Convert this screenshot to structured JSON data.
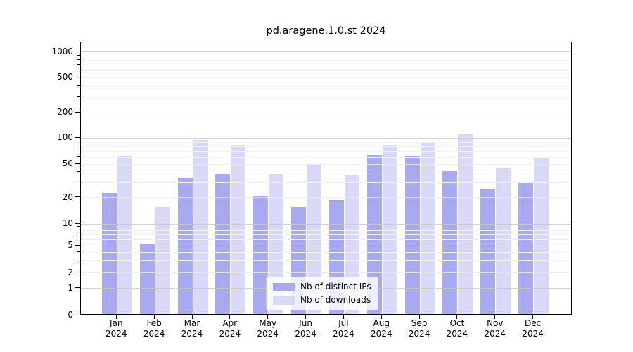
{
  "title": "pd.aragene.1.0.st 2024",
  "chart_data": {
    "type": "bar",
    "title": "pd.aragene.1.0.st 2024",
    "categories": [
      "Jan 2024",
      "Feb 2024",
      "Mar 2024",
      "Apr 2024",
      "May 2024",
      "Jun 2024",
      "Jul 2024",
      "Aug 2024",
      "Sep 2024",
      "Oct 2024",
      "Nov 2024",
      "Dec 2024"
    ],
    "x_tick_month_labels": [
      "Jan",
      "Feb",
      "Mar",
      "Apr",
      "May",
      "Jun",
      "Jul",
      "Aug",
      "Sep",
      "Oct",
      "Nov",
      "Dec"
    ],
    "x_tick_year_label": "2024",
    "series": [
      {
        "name": "Nb of distinct IPs",
        "color": "#a9a9ef",
        "values": [
          22,
          5,
          33,
          37,
          20,
          15,
          18,
          62,
          61,
          40,
          24,
          30
        ]
      },
      {
        "name": "Nb of downloads",
        "color": "#d9d9f7",
        "values": [
          60,
          15,
          92,
          80,
          37,
          48,
          36,
          80,
          85,
          108,
          43,
          57
        ]
      }
    ],
    "yscale": "symlog",
    "ylim": [
      0,
      1000
    ],
    "y_ticks": [
      0,
      1,
      2,
      5,
      10,
      20,
      50,
      100,
      200,
      500,
      1000
    ],
    "y_minor_ticks": [
      3,
      4,
      6,
      7,
      8,
      9,
      30,
      40,
      60,
      70,
      80,
      90,
      300,
      400,
      600,
      700,
      800,
      900
    ],
    "grid": true,
    "legend_position": "lower center"
  },
  "colors": {
    "grid_major": "#c9c9c9",
    "grid_mid": "#e8e8e8",
    "grid_minor": "#f3f3f3",
    "spine": "#000000",
    "text": "#000000"
  }
}
